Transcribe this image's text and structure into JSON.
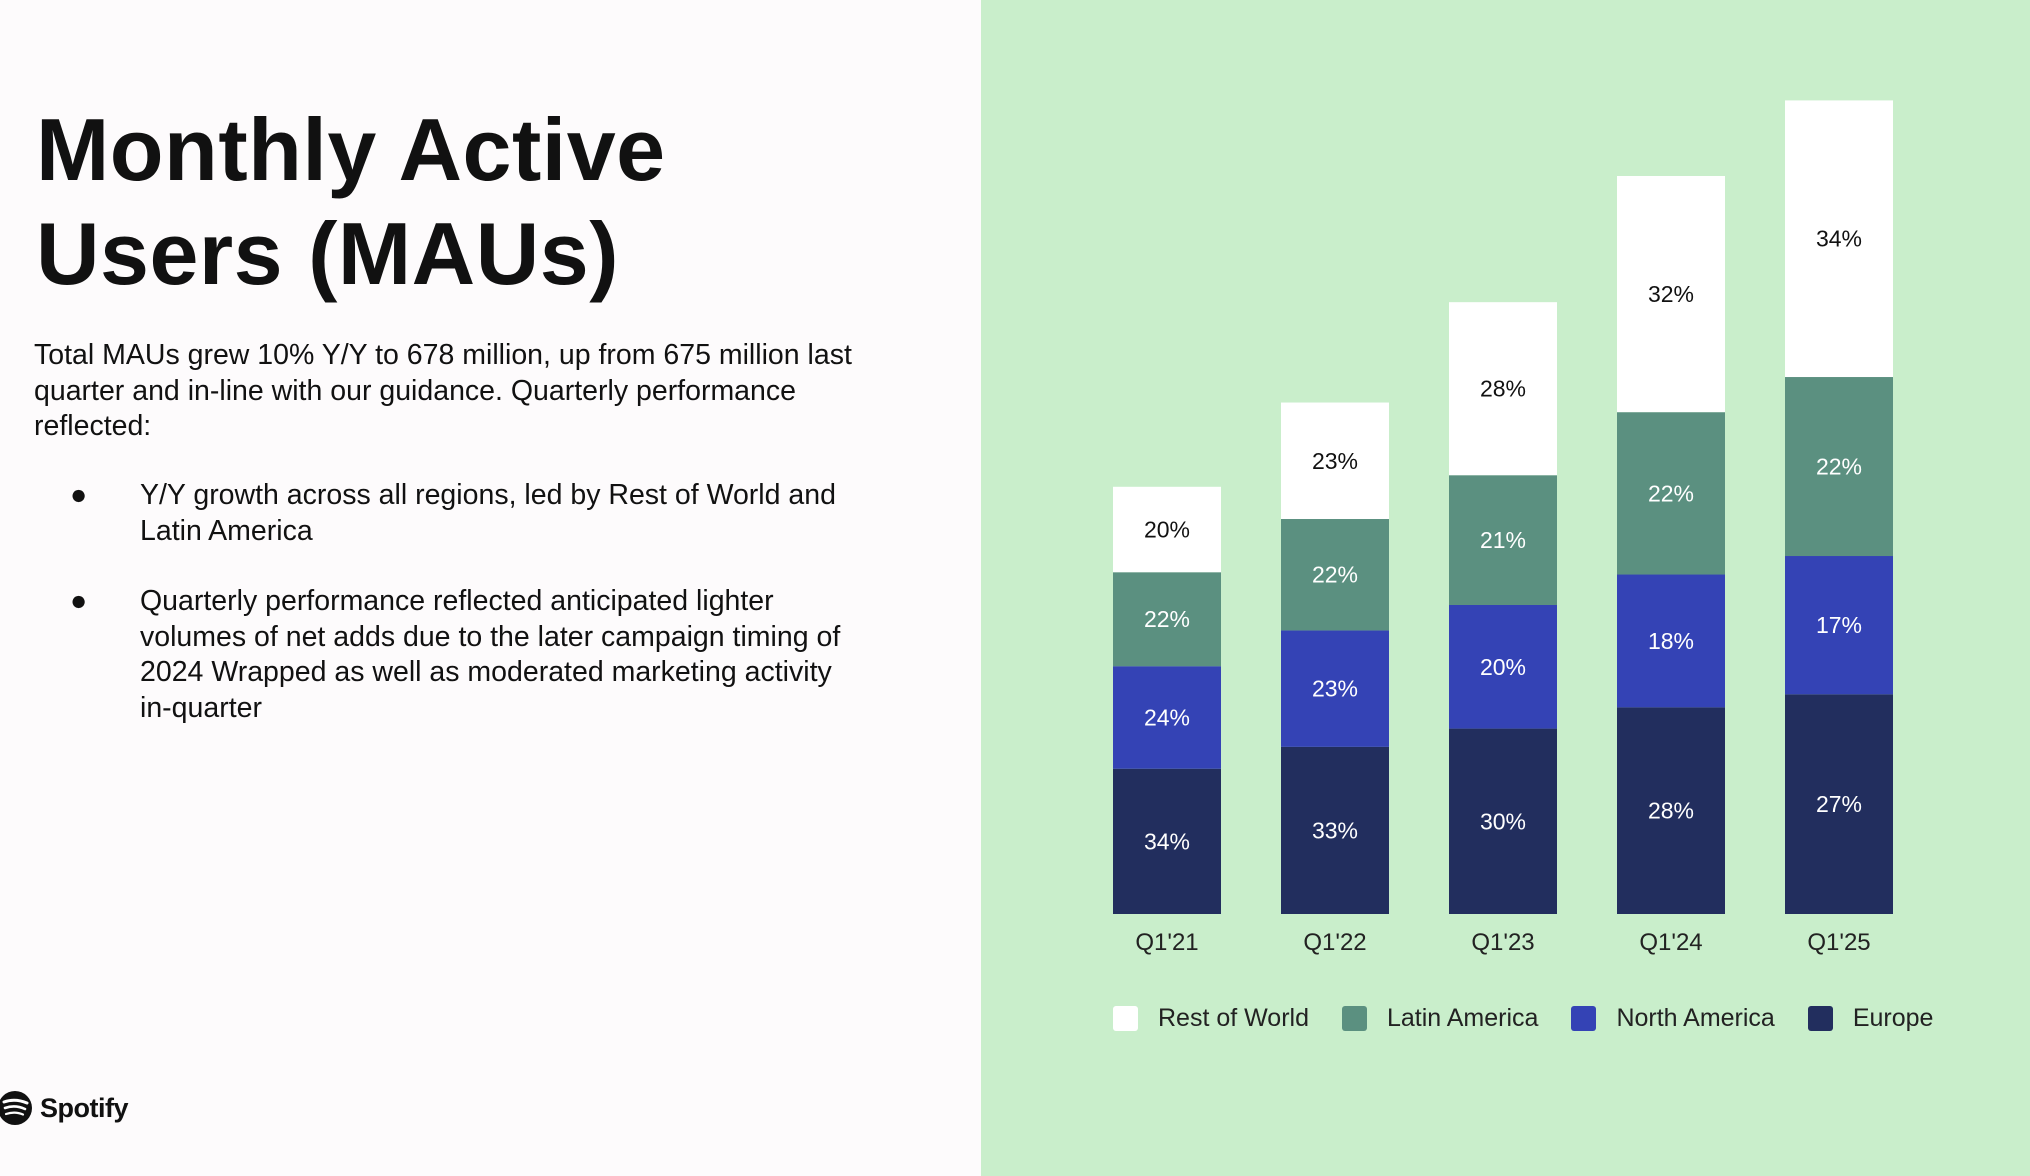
{
  "title_lines": [
    "Monthly Active",
    "Users (MAUs)"
  ],
  "intro": "Total MAUs grew 10% Y/Y to 678 million, up from 675 million last quarter and in-line with our guidance. Quarterly performance reflected:",
  "bullets": [
    "Y/Y growth across all regions, led by Rest of World and Latin America",
    "Quarterly performance reflected anticipated lighter volumes of net adds due to the later campaign timing of 2024 Wrapped as well as moderated marketing activity in-quarter"
  ],
  "bullet_symbol": "●",
  "logo": "Spotify",
  "chart_data": {
    "type": "bar",
    "stacked": true,
    "categories": [
      "Q1'21",
      "Q1'22",
      "Q1'23",
      "Q1'24",
      "Q1'25"
    ],
    "bar_totals_relative": [
      356,
      422,
      515,
      615,
      678
    ],
    "series": [
      {
        "name": "Europe",
        "color": "#222e5e",
        "label_color": "#ffffff",
        "values": [
          34,
          33,
          30,
          28,
          27
        ]
      },
      {
        "name": "North America",
        "color": "#3443b5",
        "label_color": "#ffffff",
        "values": [
          24,
          23,
          20,
          18,
          17
        ]
      },
      {
        "name": "Latin America",
        "color": "#5b9080",
        "label_color": "#ffffff",
        "values": [
          22,
          22,
          21,
          22,
          22
        ]
      },
      {
        "name": "Rest of World",
        "color": "#ffffff",
        "label_color": "#111111",
        "values": [
          20,
          23,
          28,
          32,
          34
        ]
      }
    ],
    "legend_order": [
      "Rest of World",
      "Latin America",
      "North America",
      "Europe"
    ],
    "value_suffix": "%",
    "legend_position": "bottom",
    "grid": false
  }
}
